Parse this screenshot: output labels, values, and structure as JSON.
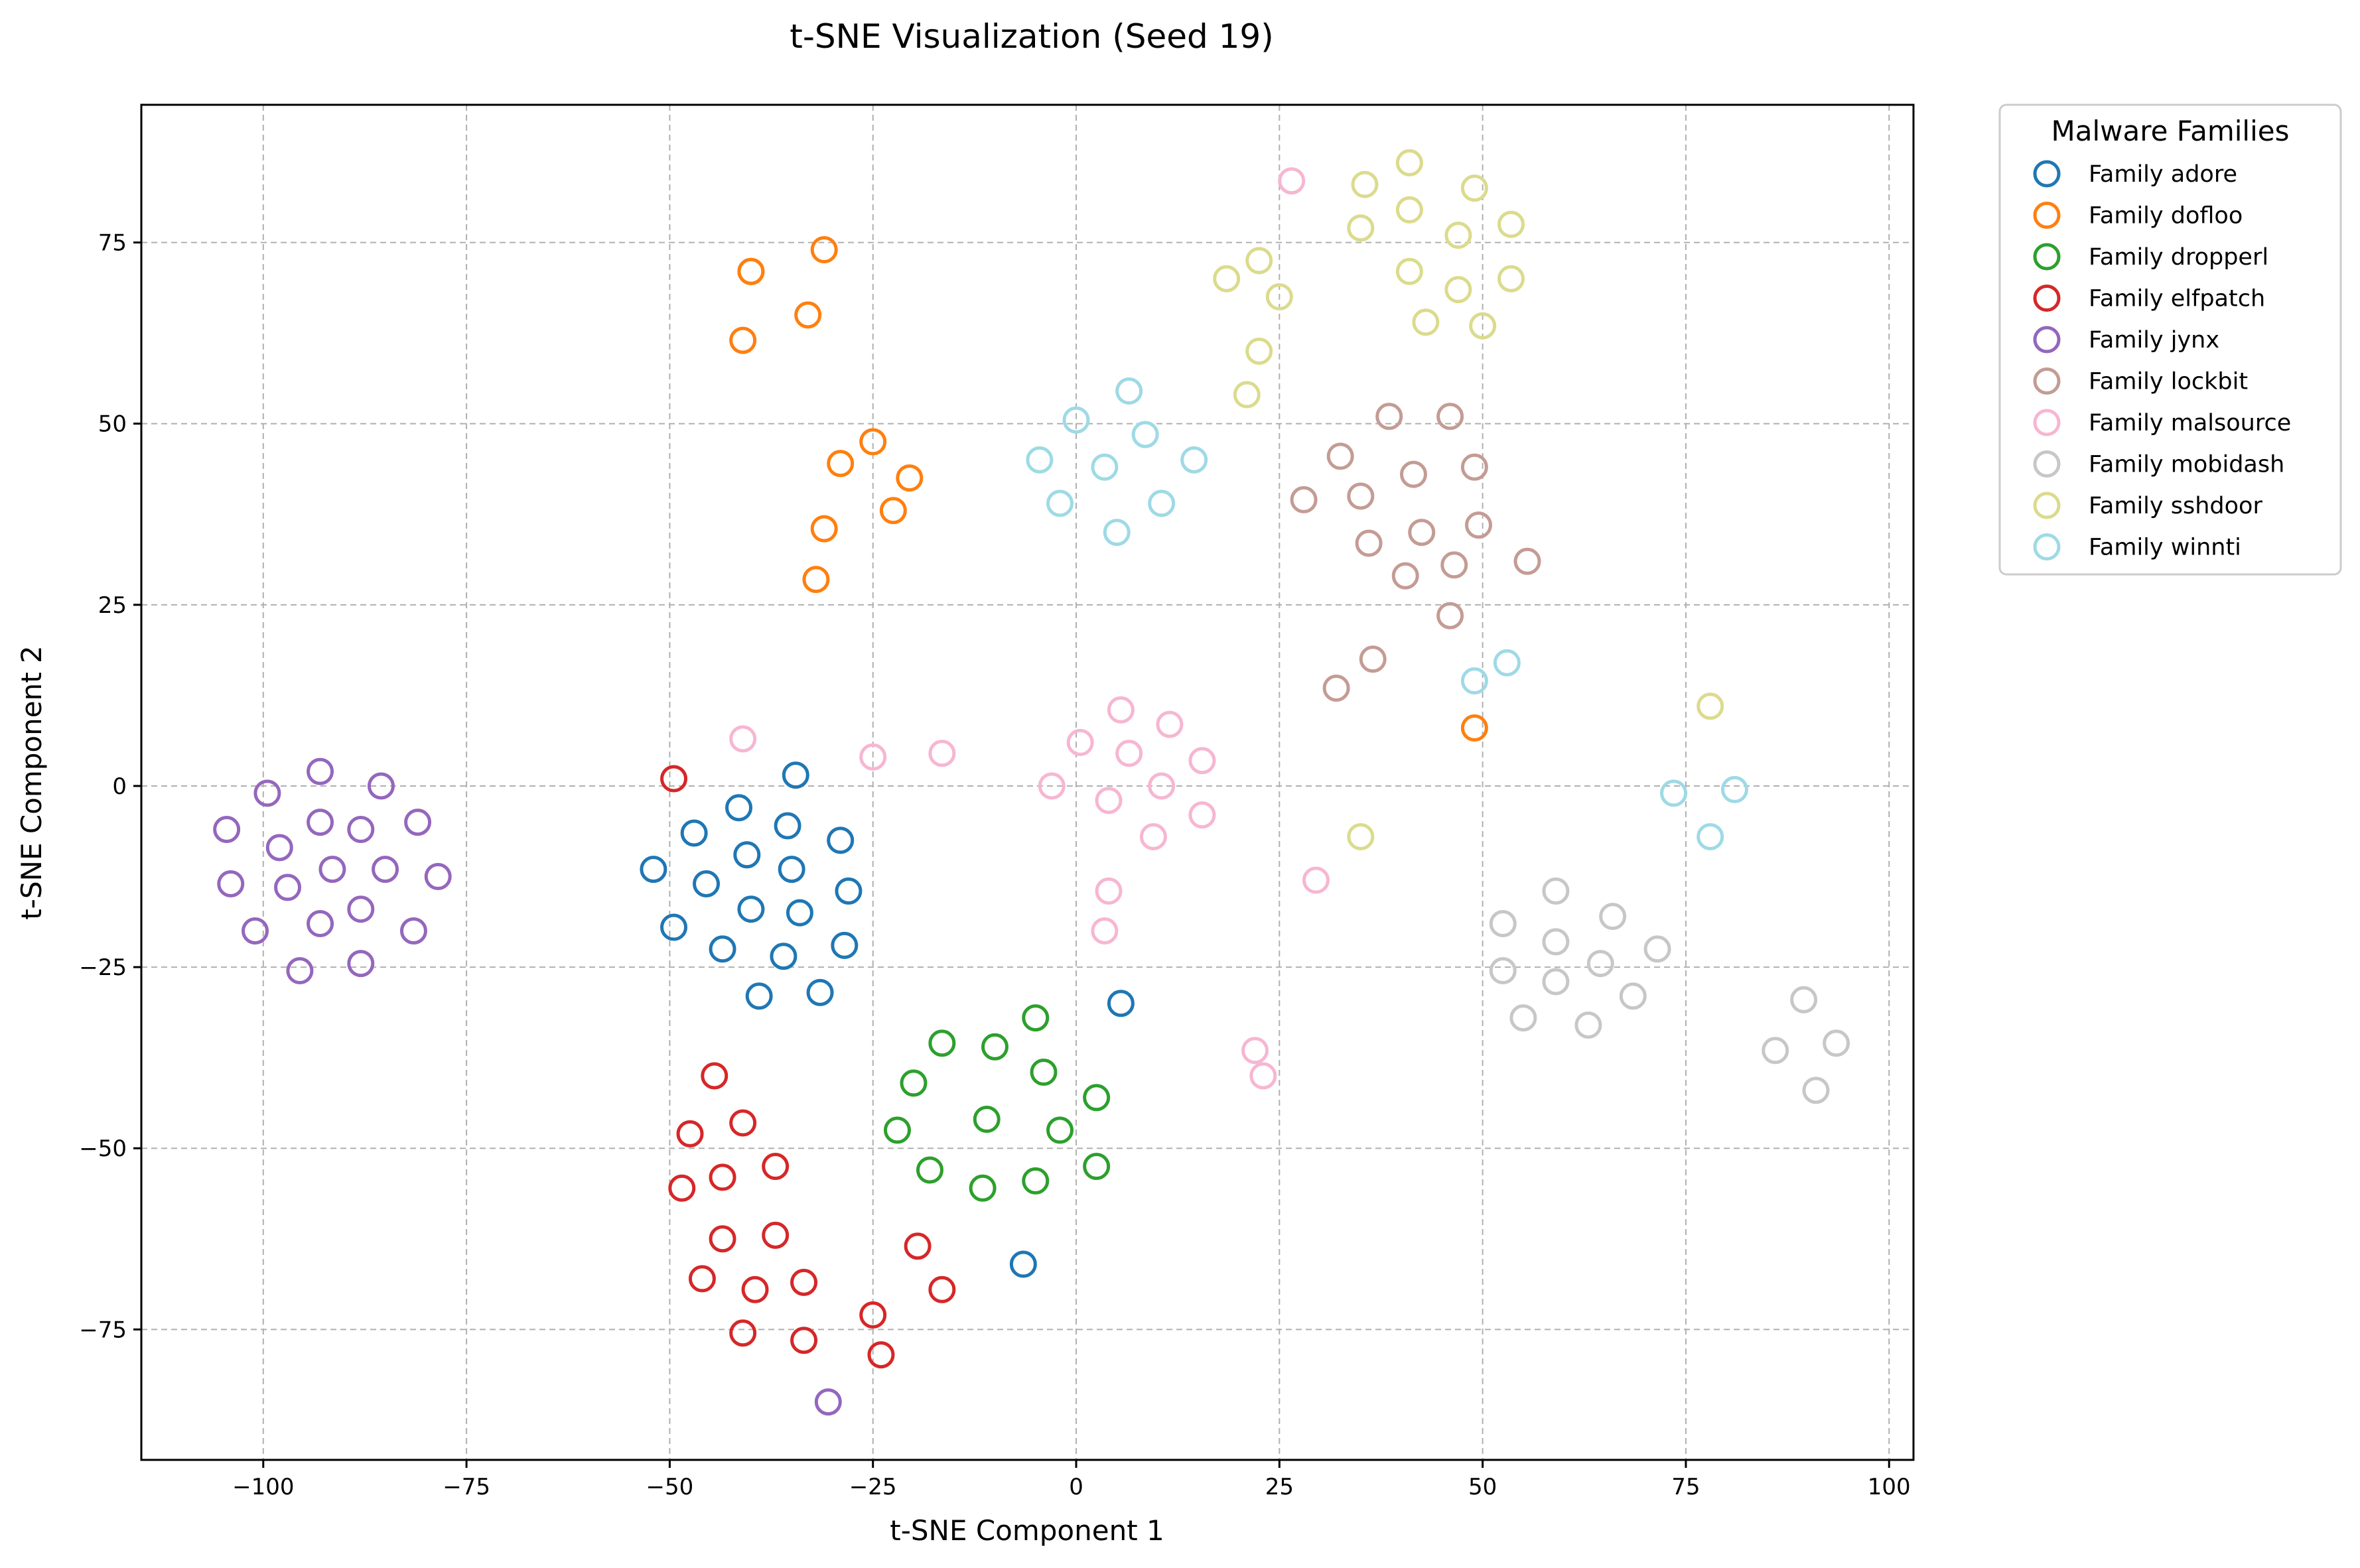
{
  "chart_data": {
    "type": "scatter",
    "title": "t-SNE Visualization (Seed 19)",
    "xlabel": "t-SNE Component 1",
    "ylabel": "t-SNE Component 2",
    "xlim": [
      -115,
      103
    ],
    "ylim": [
      -93,
      94
    ],
    "x_ticks": [
      -100,
      -75,
      -50,
      -25,
      0,
      25,
      50,
      75,
      100
    ],
    "x_tick_labels": [
      "−100",
      "−75",
      "−50",
      "−25",
      "0",
      "25",
      "50",
      "75",
      "100"
    ],
    "y_ticks": [
      -75,
      -50,
      -25,
      0,
      25,
      50,
      75
    ],
    "y_tick_labels": [
      "−75",
      "−50",
      "−25",
      "0",
      "25",
      "50",
      "75"
    ],
    "grid": true,
    "legend_title": "Malware Families",
    "legend_position": "outside-top-right",
    "marker": "hollow-circle",
    "series": [
      {
        "name": "Family adore",
        "color": "#1f77b4",
        "points": [
          [
            -34.5,
            1.5
          ],
          [
            -41.5,
            -3
          ],
          [
            -47,
            -6.5
          ],
          [
            -35.5,
            -5.5
          ],
          [
            -29,
            -7.5
          ],
          [
            -52,
            -11.5
          ],
          [
            -40.5,
            -9.5
          ],
          [
            -45.5,
            -13.5
          ],
          [
            -35,
            -11.5
          ],
          [
            -49.5,
            -19.5
          ],
          [
            -40,
            -17
          ],
          [
            -34,
            -17.5
          ],
          [
            -28,
            -14.5
          ],
          [
            -43.5,
            -22.5
          ],
          [
            -36,
            -23.5
          ],
          [
            -28.5,
            -22
          ],
          [
            -39,
            -29
          ],
          [
            -31.5,
            -28.5
          ],
          [
            5.5,
            -30
          ],
          [
            -6.5,
            -66
          ]
        ]
      },
      {
        "name": "Family dofloo",
        "color": "#ff7f0e",
        "points": [
          [
            -40,
            71
          ],
          [
            -40,
            71
          ],
          [
            -31,
            74
          ],
          [
            -33,
            65
          ],
          [
            -41,
            61.5
          ],
          [
            -25,
            47.5
          ],
          [
            -29,
            44.5
          ],
          [
            -20.5,
            42.5
          ],
          [
            -22.5,
            38
          ],
          [
            -31,
            35.5
          ],
          [
            -32,
            28.5
          ],
          [
            49,
            8
          ]
        ]
      },
      {
        "name": "Family dropperl",
        "color": "#2ca02c",
        "points": [
          [
            -16.5,
            -35.5
          ],
          [
            -10,
            -36
          ],
          [
            -5,
            -32
          ],
          [
            -20,
            -41
          ],
          [
            -4,
            -39.5
          ],
          [
            2.5,
            -43
          ],
          [
            -22,
            -47.5
          ],
          [
            -11,
            -46
          ],
          [
            -2,
            -47.5
          ],
          [
            -18,
            -53
          ],
          [
            -11.5,
            -55.5
          ],
          [
            -5,
            -54.5
          ],
          [
            2.5,
            -52.5
          ]
        ]
      },
      {
        "name": "Family elfpatch",
        "color": "#d62728",
        "points": [
          [
            -49.5,
            1
          ],
          [
            -44.5,
            -40
          ],
          [
            -47.5,
            -48
          ],
          [
            -41,
            -46.5
          ],
          [
            -43.5,
            -54
          ],
          [
            -48.5,
            -55.5
          ],
          [
            -37,
            -52.5
          ],
          [
            -43.5,
            -62.5
          ],
          [
            -37,
            -62
          ],
          [
            -46,
            -68
          ],
          [
            -39.5,
            -69.5
          ],
          [
            -33.5,
            -68.5
          ],
          [
            -19.5,
            -63.5
          ],
          [
            -16.5,
            -69.5
          ],
          [
            -41,
            -75.5
          ],
          [
            -33.5,
            -76.5
          ],
          [
            -25,
            -73
          ],
          [
            -24,
            -78.5
          ]
        ]
      },
      {
        "name": "Family jynx",
        "color": "#9467bd",
        "points": [
          [
            -93,
            2
          ],
          [
            -85.5,
            0
          ],
          [
            -99.5,
            -1
          ],
          [
            -104.5,
            -6
          ],
          [
            -93,
            -5
          ],
          [
            -88,
            -6
          ],
          [
            -81,
            -5
          ],
          [
            -98,
            -8.5
          ],
          [
            -91.5,
            -11.5
          ],
          [
            -85,
            -11.5
          ],
          [
            -104,
            -13.5
          ],
          [
            -97,
            -14
          ],
          [
            -78.5,
            -12.5
          ],
          [
            -101,
            -20
          ],
          [
            -93,
            -19
          ],
          [
            -88,
            -17
          ],
          [
            -81.5,
            -20
          ],
          [
            -95.5,
            -25.5
          ],
          [
            -88,
            -24.5
          ],
          [
            -30.5,
            -85
          ]
        ]
      },
      {
        "name": "Family lockbit",
        "color": "#c49c94",
        "points": [
          [
            38.5,
            51
          ],
          [
            46,
            51
          ],
          [
            32.5,
            45.5
          ],
          [
            49,
            44
          ],
          [
            28,
            39.5
          ],
          [
            35,
            40
          ],
          [
            41.5,
            43
          ],
          [
            36,
            33.5
          ],
          [
            42.5,
            35
          ],
          [
            49.5,
            36
          ],
          [
            40.5,
            29
          ],
          [
            46.5,
            30.5
          ],
          [
            55.5,
            31
          ],
          [
            46,
            23.5
          ],
          [
            36.5,
            17.5
          ],
          [
            32,
            13.5
          ]
        ]
      },
      {
        "name": "Family malsource",
        "color": "#f7b6d2",
        "points": [
          [
            26.5,
            83.5
          ],
          [
            -41,
            6.5
          ],
          [
            -25,
            4
          ],
          [
            -16.5,
            4.5
          ],
          [
            5.5,
            10.5
          ],
          [
            11.5,
            8.5
          ],
          [
            0.5,
            6
          ],
          [
            6.5,
            4.5
          ],
          [
            15.5,
            3.5
          ],
          [
            -3,
            0
          ],
          [
            10.5,
            0
          ],
          [
            4,
            -2
          ],
          [
            15.5,
            -4
          ],
          [
            9.5,
            -7
          ],
          [
            4,
            -14.5
          ],
          [
            3.5,
            -20
          ],
          [
            22,
            -36.5
          ],
          [
            23,
            -40
          ],
          [
            29.5,
            -13
          ]
        ]
      },
      {
        "name": "Family mobidash",
        "color": "#c7c7c7",
        "points": [
          [
            59,
            -14.5
          ],
          [
            66,
            -18
          ],
          [
            52.5,
            -19
          ],
          [
            59,
            -21.5
          ],
          [
            71.5,
            -22.5
          ],
          [
            52.5,
            -25.5
          ],
          [
            64.5,
            -24.5
          ],
          [
            59,
            -27
          ],
          [
            68.5,
            -29
          ],
          [
            55,
            -32
          ],
          [
            63,
            -33
          ],
          [
            89.5,
            -29.5
          ],
          [
            93.5,
            -35.5
          ],
          [
            86,
            -36.5
          ],
          [
            91,
            -42
          ]
        ]
      },
      {
        "name": "Family sshdoor",
        "color": "#dbdb8d",
        "points": [
          [
            41,
            86
          ],
          [
            35.5,
            83
          ],
          [
            49,
            82.5
          ],
          [
            41,
            79.5
          ],
          [
            35,
            77
          ],
          [
            47,
            76
          ],
          [
            53.5,
            77.5
          ],
          [
            22.5,
            72.5
          ],
          [
            18.5,
            70
          ],
          [
            41,
            71
          ],
          [
            47,
            68.5
          ],
          [
            53.5,
            70
          ],
          [
            25,
            67.5
          ],
          [
            43,
            64
          ],
          [
            50,
            63.5
          ],
          [
            22.5,
            60
          ],
          [
            21,
            54
          ],
          [
            78,
            11
          ],
          [
            35,
            -7
          ]
        ]
      },
      {
        "name": "Family winnti",
        "color": "#9edae5",
        "points": [
          [
            6.5,
            54.5
          ],
          [
            0,
            50.5
          ],
          [
            8.5,
            48.5
          ],
          [
            -4.5,
            45
          ],
          [
            3.5,
            44
          ],
          [
            14.5,
            45
          ],
          [
            -2,
            39
          ],
          [
            10.5,
            39
          ],
          [
            5,
            35
          ],
          [
            53,
            17
          ],
          [
            49,
            14.5
          ],
          [
            73.5,
            -1
          ],
          [
            81,
            -0.5
          ],
          [
            78,
            -7
          ]
        ]
      }
    ]
  }
}
